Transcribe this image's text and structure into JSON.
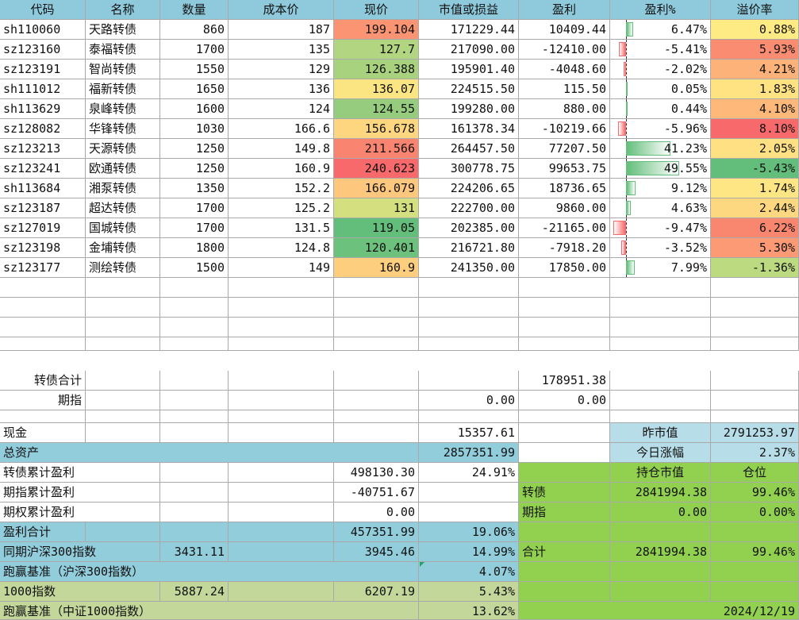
{
  "headers": [
    "代码",
    "名称",
    "数量",
    "成本价",
    "现价",
    "市值或损益",
    "盈利",
    "盈利%",
    "溢价率"
  ],
  "colors": {
    "header": "#8ecadb",
    "blue": "#92cddc",
    "light_blue": "#b7dee8",
    "green": "#92d050",
    "olive": "#c4d79b",
    "bar_pos": "#63be7b",
    "bar_neg": "#f8696b"
  },
  "rows": [
    {
      "code": "sh110060",
      "name": "天路转债",
      "qty": "860",
      "cost": "187",
      "price": "199.104",
      "mv": "171229.44",
      "profit": "10409.44",
      "pct": "6.47%",
      "pct_value": 6.47,
      "premium": "0.88%",
      "price_color": "#fa9473",
      "premium_color": "#ffeb84"
    },
    {
      "code": "sz123160",
      "name": "泰福转债",
      "qty": "1700",
      "cost": "135",
      "price": "127.7",
      "mv": "217090.00",
      "profit": "-12410.00",
      "pct": "-5.41%",
      "pct_value": -5.41,
      "premium": "5.93%",
      "price_color": "#b1d580",
      "premium_color": "#fa8c72"
    },
    {
      "code": "sz123191",
      "name": "智尚转债",
      "qty": "1550",
      "cost": "129",
      "price": "126.388",
      "mv": "195901.40",
      "profit": "-4048.60",
      "pct": "-2.02%",
      "pct_value": -2.02,
      "premium": "4.21%",
      "price_color": "#a9d27f",
      "premium_color": "#fdb279"
    },
    {
      "code": "sh111012",
      "name": "福新转债",
      "qty": "1650",
      "cost": "136",
      "price": "136.07",
      "mv": "224515.50",
      "profit": "115.50",
      "pct": "0.05%",
      "pct_value": 0.05,
      "premium": "1.83%",
      "price_color": "#fbe583",
      "premium_color": "#ffe383"
    },
    {
      "code": "sh113629",
      "name": "泉峰转债",
      "qty": "1600",
      "cost": "124",
      "price": "124.55",
      "mv": "199280.00",
      "profit": "880.00",
      "pct": "0.44%",
      "pct_value": 0.44,
      "premium": "4.10%",
      "price_color": "#95cc7d",
      "premium_color": "#fdb87a"
    },
    {
      "code": "sz128082",
      "name": "华锋转债",
      "qty": "1030",
      "cost": "166.6",
      "price": "156.678",
      "mv": "161378.34",
      "profit": "-10219.66",
      "pct": "-5.96%",
      "pct_value": -5.96,
      "premium": "8.10%",
      "price_color": "#fed680",
      "premium_color": "#f8696b"
    },
    {
      "code": "sz123213",
      "name": "天源转债",
      "qty": "1250",
      "cost": "149.8",
      "price": "211.566",
      "mv": "264457.50",
      "profit": "77207.50",
      "pct": "41.23%",
      "pct_value": 41.23,
      "premium": "2.05%",
      "price_color": "#f98570",
      "premium_color": "#ffe083"
    },
    {
      "code": "sz123241",
      "name": "欧通转债",
      "qty": "1250",
      "cost": "160.9",
      "price": "240.623",
      "mv": "300778.75",
      "profit": "99653.75",
      "pct": "49.55%",
      "pct_value": 49.55,
      "premium": "-5.43%",
      "price_color": "#f8696b",
      "premium_color": "#63be7b"
    },
    {
      "code": "sh113684",
      "name": "湘泵转债",
      "qty": "1350",
      "cost": "152.2",
      "price": "166.079",
      "mv": "224206.65",
      "profit": "18736.65",
      "pct": "9.12%",
      "pct_value": 9.12,
      "premium": "1.74%",
      "price_color": "#fdc77d",
      "premium_color": "#ffe684"
    },
    {
      "code": "sz123187",
      "name": "超达转债",
      "qty": "1700",
      "cost": "125.2",
      "price": "131",
      "mv": "222700.00",
      "profit": "9860.00",
      "pct": "4.63%",
      "pct_value": 4.63,
      "premium": "2.44%",
      "price_color": "#d4e080",
      "premium_color": "#fed880"
    },
    {
      "code": "sz127019",
      "name": "国城转债",
      "qty": "1700",
      "cost": "131.5",
      "price": "119.05",
      "mv": "202385.00",
      "profit": "-21165.00",
      "pct": "-9.47%",
      "pct_value": -9.47,
      "premium": "6.22%",
      "price_color": "#63be7b",
      "premium_color": "#f98770"
    },
    {
      "code": "sz123198",
      "name": "金埔转债",
      "qty": "1800",
      "cost": "124.8",
      "price": "120.401",
      "mv": "216721.80",
      "profit": "-7918.20",
      "pct": "-3.52%",
      "pct_value": -3.52,
      "premium": "5.30%",
      "price_color": "#6cc17c",
      "premium_color": "#fb9a74"
    },
    {
      "code": "sz123177",
      "name": "测绘转债",
      "qty": "1500",
      "cost": "149",
      "price": "160.9",
      "mv": "241350.00",
      "profit": "17850.00",
      "pct": "7.99%",
      "pct_value": 7.99,
      "premium": "-1.36%",
      "price_color": "#fece7f",
      "premium_color": "#bcda80"
    }
  ],
  "summary": {
    "cb_total_label": "转债合计",
    "cb_total_profit": "178951.38",
    "futures_label": "期指",
    "futures_mv": "0.00",
    "futures_profit": "0.00"
  },
  "bottom": {
    "cash_label": "现金",
    "cash_value": "15357.61",
    "total_assets_label": "总资产",
    "total_assets_value": "2857351.99",
    "prev_mv_label": "昨市值",
    "prev_mv_value": "2791253.97",
    "today_change_label": "今日涨幅",
    "today_change_value": "2.37%",
    "cb_cum_label": "转债累计盈利",
    "cb_cum_value": "498130.30",
    "cb_cum_pct": "24.91%",
    "fut_cum_label": "期指累计盈利",
    "fut_cum_value": "-40751.67",
    "opt_cum_label": "期权累计盈利",
    "opt_cum_value": "0.00",
    "profit_total_label": "盈利合计",
    "profit_total_value": "457351.99",
    "profit_total_pct": "19.06%",
    "hs300_label": "同期沪深300指数",
    "hs300_start": "3431.11",
    "hs300_now": "3945.46",
    "hs300_pct": "14.99%",
    "beat_hs300_label": "跑赢基准（沪深300指数）",
    "beat_hs300_value": "4.07%",
    "csi1000_label": "1000指数",
    "csi1000_start": "5887.24",
    "csi1000_now": "6207.19",
    "csi1000_pct": "5.43%",
    "beat_csi1000_label": "跑赢基准（中证1000指数）",
    "beat_csi1000_value": "13.62%",
    "pos_header_mv": "持仓市值",
    "pos_header_pct": "仓位",
    "pos_cb_label": "转债",
    "pos_cb_mv": "2841994.38",
    "pos_cb_pct": "99.46%",
    "pos_fut_label": "期指",
    "pos_fut_mv": "0.00",
    "pos_fut_pct": "0.00%",
    "pos_total_label": "合计",
    "pos_total_mv": "2841994.38",
    "pos_total_pct": "99.46%",
    "date": "2024/12/19"
  }
}
